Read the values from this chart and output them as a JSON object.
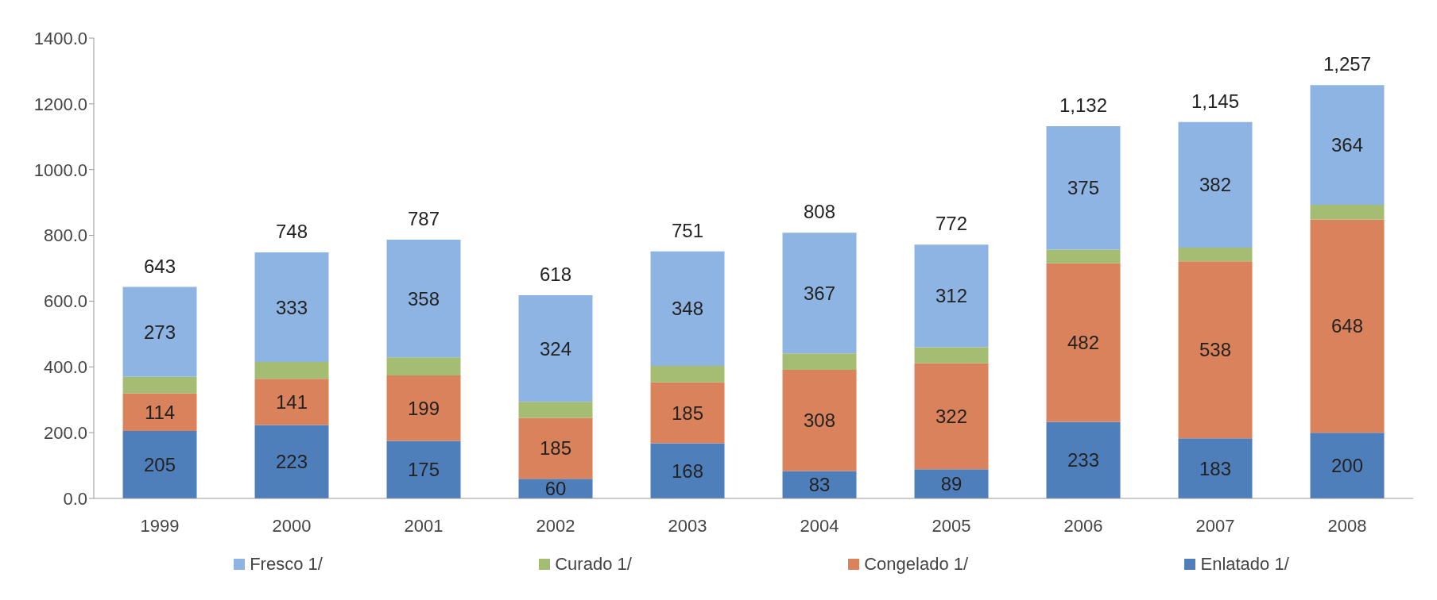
{
  "chart_data": {
    "type": "bar",
    "stacked": true,
    "categories": [
      "1999",
      "2000",
      "2001",
      "2002",
      "2003",
      "2004",
      "2005",
      "2006",
      "2007",
      "2008"
    ],
    "series": [
      {
        "name": "Enlatado 1/",
        "color": "#4f7fba",
        "values": [
          205,
          223,
          175,
          60,
          168,
          83,
          89,
          233,
          183,
          200
        ],
        "value_labels": [
          "205",
          "223",
          "175",
          "60",
          "168",
          "83",
          "89",
          "233",
          "183",
          "200"
        ]
      },
      {
        "name": "Congelado 1/",
        "color": "#d9825b",
        "values": [
          114,
          141,
          199,
          185,
          185,
          308,
          322,
          482,
          538,
          648
        ],
        "value_labels": [
          "114",
          "141",
          "199",
          "185",
          "185",
          "308",
          "322",
          "482",
          "538",
          "648"
        ]
      },
      {
        "name": "Curado 1/",
        "color": "#a4bd72",
        "values": [
          51,
          51,
          55,
          49,
          50,
          50,
          49,
          42,
          42,
          45
        ],
        "value_labels": [
          null,
          null,
          null,
          null,
          null,
          null,
          null,
          null,
          null,
          null
        ]
      },
      {
        "name": "Fresco 1/",
        "color": "#8db4e2",
        "values": [
          273,
          333,
          358,
          324,
          348,
          367,
          312,
          375,
          382,
          364
        ],
        "value_labels": [
          "273",
          "333",
          "358",
          "324",
          "348",
          "367",
          "312",
          "375",
          "382",
          "364"
        ]
      }
    ],
    "totals": [
      "643",
      "748",
      "787",
      "618",
      "751",
      "808",
      "772",
      "1,132",
      "1,145",
      "1,257"
    ],
    "ylim": [
      0,
      1400
    ],
    "yticks": [
      {
        "value": 0,
        "label": "0.0"
      },
      {
        "value": 200,
        "label": "200.0"
      },
      {
        "value": 400,
        "label": "400.0"
      },
      {
        "value": 600,
        "label": "600.0"
      },
      {
        "value": 800,
        "label": "800.0"
      },
      {
        "value": 1000,
        "label": "1000.0"
      },
      {
        "value": 1200,
        "label": "1200.0"
      },
      {
        "value": 1400,
        "label": "1400.0"
      }
    ],
    "grid": false,
    "legend": "bottom"
  }
}
